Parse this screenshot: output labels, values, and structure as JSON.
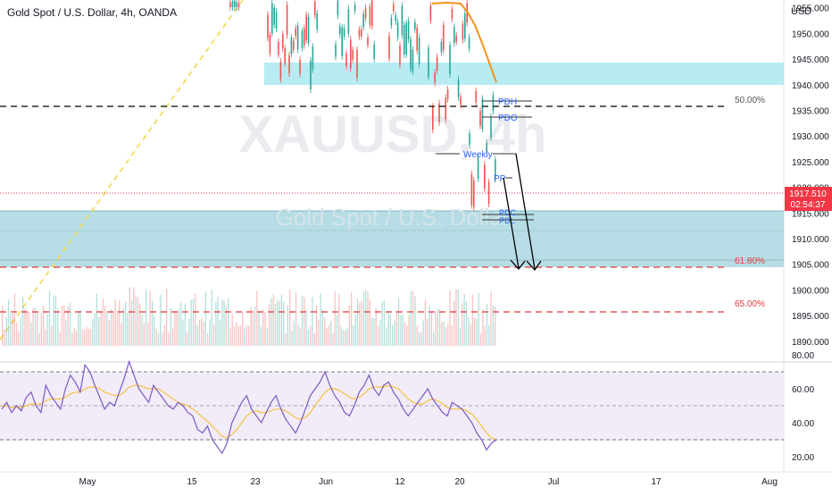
{
  "header": {
    "title": "Gold Spot / U.S. Dollar, 4h, OANDA",
    "currency": "USD"
  },
  "watermark": {
    "symbol": "XAUUSD, 4h",
    "description": "Gold Spot / U.S. Dollar"
  },
  "colors": {
    "up": "#26a69a",
    "down": "#ef5350",
    "ma": "#f7931a",
    "zone_light": "#9ee6ee",
    "zone_teal": "#a9d7e0",
    "rsi_line": "#7e57c2",
    "rsi_ma": "#f5c242",
    "fib_black": "#000000",
    "fib_red": "#e5383b",
    "price_tag": "#f23645",
    "trend_yellow": "#f6d94a"
  },
  "price_tag": {
    "price": "1917.510",
    "countdown": "02:54:37"
  },
  "annotations": {
    "fib_50": "50.00%",
    "fib_618": "61.80%",
    "fib_65": "65.00%",
    "pdh": "PDH",
    "pdo": "PDO",
    "weekly": "Weekly",
    "pp": "PP",
    "pdc": "PDC",
    "pdl": "PDL"
  },
  "chart_data": [
    {
      "type": "candlestick",
      "title": "Gold Spot / U.S. Dollar, 4h, OANDA",
      "ylabel": "USD",
      "ylim": [
        1886,
        1957
      ],
      "y_ticks": [
        1890,
        1895,
        1900,
        1905,
        1910,
        1915,
        1920,
        1925,
        1930,
        1935,
        1940,
        1945,
        1950,
        1955
      ],
      "y_tick_labels": [
        "1890.000",
        "1895.000",
        "1900.000",
        "1905.000",
        "1910.000",
        "1915.000",
        "1920.000",
        "1925.000",
        "1930.000",
        "1935.000",
        "1940.000",
        "1945.000",
        "1950.000",
        "1955.000"
      ],
      "x_tick_labels": [
        "May",
        "15",
        "23",
        "Jun",
        "12",
        "20",
        "Jul",
        "17",
        "Aug"
      ],
      "series": [
        {
          "name": "XAUUSD",
          "kind": "candles"
        },
        {
          "name": "Moving Average",
          "kind": "line",
          "values": [
            1957,
            1956,
            1954,
            1950,
            1945,
            1940
          ]
        },
        {
          "name": "Volume",
          "kind": "histogram"
        }
      ],
      "levels": [
        {
          "label": "50.00%",
          "value": 1934.2
        },
        {
          "label": "61.80%",
          "value": 1903.3
        },
        {
          "label": "65.00%",
          "value": 1894.6
        },
        {
          "label": "PDH",
          "value": 1935.7
        },
        {
          "label": "PDO",
          "value": 1932.6
        },
        {
          "label": "Weekly",
          "value": 1925.2
        },
        {
          "label": "PP",
          "value": 1920.6
        },
        {
          "label": "PDC",
          "value": 1914.6
        },
        {
          "label": "PDL",
          "value": 1913.2
        }
      ],
      "zones": [
        {
          "from": 1938.7,
          "to": 1942.6
        },
        {
          "from": 1903.5,
          "to": 1914.2
        }
      ],
      "last_price": 1917.51
    },
    {
      "type": "line",
      "title": "",
      "ylim": [
        15,
        85
      ],
      "y_ticks": [
        20,
        40,
        60,
        80
      ],
      "y_tick_labels": [
        "20.00",
        "40.00",
        "60.00",
        "80.00"
      ],
      "bands": [
        30,
        50,
        70
      ],
      "series": [
        {
          "name": "",
          "values": [
            48,
            52,
            46,
            50,
            47,
            55,
            58,
            50,
            46,
            62,
            56,
            52,
            48,
            60,
            68,
            64,
            58,
            74,
            70,
            62,
            55,
            48,
            52,
            50,
            58,
            66,
            76,
            68,
            60,
            56,
            52,
            62,
            58,
            54,
            50,
            48,
            52,
            50,
            46,
            44,
            36,
            34,
            38,
            30,
            26,
            22,
            28,
            40,
            46,
            52,
            56,
            48,
            44,
            40,
            46,
            52,
            56,
            48,
            42,
            38,
            34,
            40,
            48,
            56,
            60,
            64,
            70,
            62,
            56,
            52,
            46,
            44,
            50,
            58,
            62,
            68,
            60,
            56,
            62,
            64,
            58,
            54,
            48,
            44,
            48,
            52,
            56,
            60,
            54,
            50,
            46,
            44,
            52,
            50,
            48,
            44,
            40,
            34,
            30,
            24,
            28,
            30
          ]
        },
        {
          "name": "",
          "values": [
            50,
            50,
            49,
            49,
            49,
            50,
            51,
            51,
            51,
            53,
            54,
            54,
            54,
            55,
            57,
            58,
            58,
            60,
            61,
            61,
            60,
            58,
            57,
            56,
            56,
            58,
            61,
            62,
            62,
            61,
            60,
            60,
            60,
            58,
            56,
            54,
            52,
            51,
            50,
            48,
            46,
            43,
            41,
            38,
            35,
            32,
            31,
            33,
            36,
            40,
            44,
            46,
            47,
            46,
            46,
            47,
            48,
            48,
            47,
            45,
            43,
            42,
            43,
            46,
            50,
            54,
            58,
            60,
            60,
            59,
            57,
            55,
            54,
            55,
            57,
            60,
            61,
            61,
            61,
            62,
            61,
            60,
            57,
            54,
            52,
            51,
            51,
            53,
            54,
            53,
            51,
            49,
            48,
            48,
            48,
            47,
            45,
            42,
            38,
            34,
            31,
            30
          ]
        }
      ]
    }
  ]
}
